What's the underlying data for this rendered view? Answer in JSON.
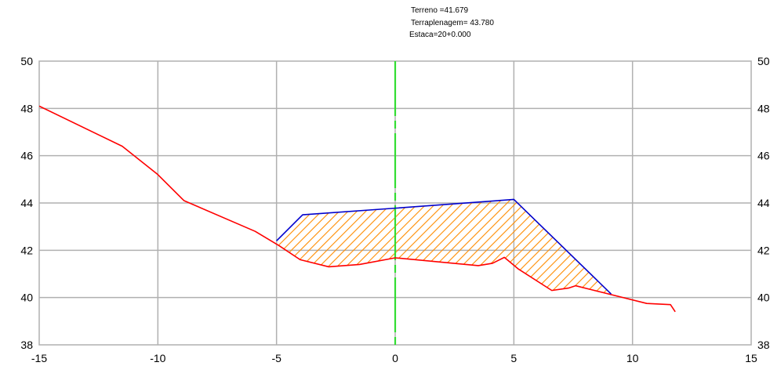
{
  "annotations": {
    "terreno": "Terreno =41.679",
    "terraplenagem": "Terraplenagem= 43.780",
    "estaca": "Estaca=20+0.000"
  },
  "chart_data": {
    "type": "line",
    "xlim": [
      -15,
      15
    ],
    "ylim": [
      38,
      50
    ],
    "x_ticks": [
      -15,
      -10,
      -5,
      0,
      5,
      10,
      15
    ],
    "x_tick_labels": [
      "-15",
      "-10",
      "-5",
      "0",
      "5",
      "10",
      "15"
    ],
    "y_ticks": [
      38,
      40,
      42,
      44,
      46,
      48,
      50
    ],
    "y_tick_labels": [
      "38",
      "40",
      "42",
      "44",
      "46",
      "48",
      "50"
    ],
    "right_y_tick_labels": [
      "38",
      "40",
      "42",
      "44",
      "46",
      "48",
      "50"
    ],
    "grid": true,
    "axis_line_x": 0,
    "series": [
      {
        "color": "#ff0000",
        "points": [
          [
            -15,
            48.1
          ],
          [
            -11.5,
            46.4
          ],
          [
            -10,
            45.2
          ],
          [
            -8.9,
            44.1
          ],
          [
            -5.9,
            42.8
          ],
          [
            -4.9,
            42.2
          ],
          [
            -4.0,
            41.6
          ],
          [
            -2.8,
            41.3
          ],
          [
            -1.5,
            41.4
          ],
          [
            0,
            41.68
          ],
          [
            3.5,
            41.35
          ],
          [
            4.1,
            41.45
          ],
          [
            4.6,
            41.7
          ],
          [
            5.2,
            41.2
          ],
          [
            6.6,
            40.3
          ],
          [
            7.3,
            40.4
          ],
          [
            7.6,
            40.5
          ],
          [
            8.2,
            40.35
          ],
          [
            10.6,
            39.75
          ],
          [
            11.6,
            39.7
          ],
          [
            11.8,
            39.4
          ]
        ]
      },
      {
        "color": "#0000cc",
        "points": [
          [
            -5.0,
            42.4
          ],
          [
            -3.9,
            43.5
          ],
          [
            0,
            43.78
          ],
          [
            5.0,
            44.15
          ],
          [
            9.1,
            40.15
          ]
        ]
      }
    ],
    "fill_region": {
      "color": "#ff8c00",
      "pattern": "diagonal-hatch"
    },
    "centerline": {
      "color": "#33dd33",
      "x": 0
    }
  }
}
